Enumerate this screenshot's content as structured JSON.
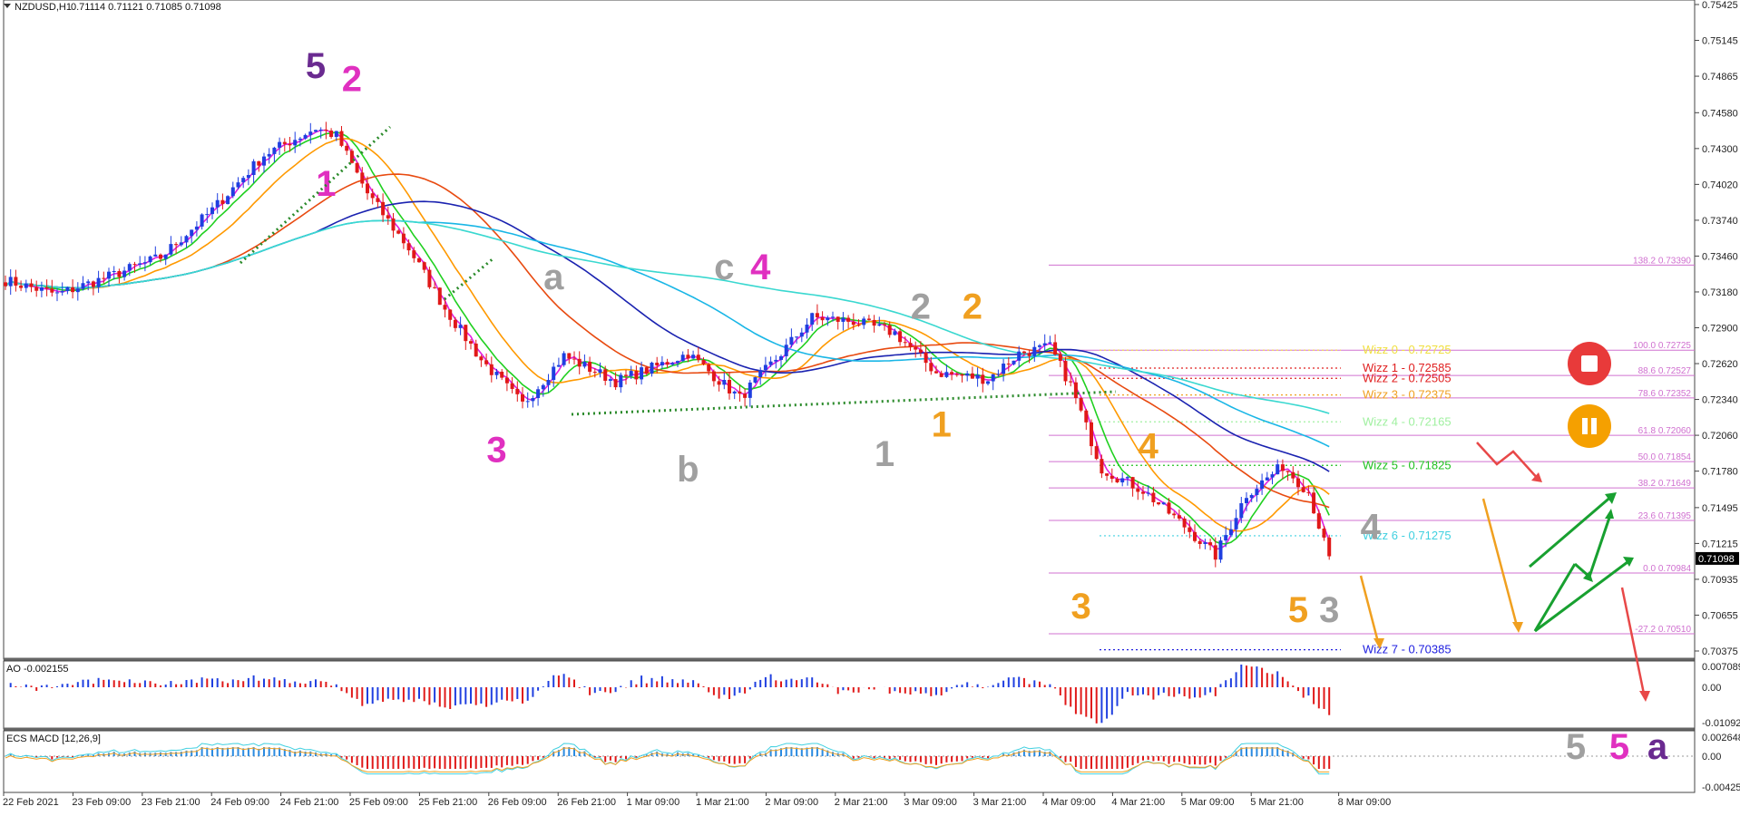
{
  "header": {
    "symbol": "NZDUSD,H1",
    "ohlc": "0.71114 0.71121 0.71085 0.71098"
  },
  "colors": {
    "bull": "#1f3fe0",
    "bear": "#e01818",
    "neutral": "#888888",
    "ema_fast": "#e020e0",
    "ema_mid": "#20d020",
    "ema_orange": "#ff9900",
    "ema_red": "#e84a10",
    "sma_blue": "#1a22b0",
    "sma_cyan": "#19b6e6",
    "sma_teal": "#3ad8d0",
    "fib": "#d070d0",
    "wave_purple": "#6a2a90",
    "wave_pink": "#e030c0",
    "wave_gray": "#a0a0a0",
    "wave_orange": "#f0a020",
    "arrow_green": "#18a030",
    "arrow_orange": "#f0a020",
    "arrow_red": "#e84848",
    "stop_button": "#e83a3a",
    "pause_button": "#f5a000"
  },
  "chart_data": {
    "type": "candlestick",
    "price_axis_ticks": [
      "0.75425",
      "0.75145",
      "0.74865",
      "0.74580",
      "0.74300",
      "0.74020",
      "0.73740",
      "0.73460",
      "0.73180",
      "0.72900",
      "0.72620",
      "0.72340",
      "0.72060",
      "0.71780",
      "0.71495",
      "0.71215",
      "0.70935",
      "0.70655",
      "0.70375"
    ],
    "current_price_label": "0.71098",
    "ylim": [
      0.70375,
      0.75425
    ],
    "time_labels": [
      "22 Feb 2021",
      "23 Feb 09:00",
      "23 Feb 21:00",
      "24 Feb 09:00",
      "24 Feb 21:00",
      "25 Feb 09:00",
      "25 Feb 21:00",
      "26 Feb 09:00",
      "26 Feb 21:00",
      "1 Mar 09:00",
      "1 Mar 21:00",
      "2 Mar 09:00",
      "2 Mar 21:00",
      "3 Mar 09:00",
      "3 Mar 21:00",
      "4 Mar 09:00",
      "4 Mar 21:00",
      "5 Mar 09:00",
      "5 Mar 21:00",
      "8 Mar 09:00"
    ],
    "close_anchors": [
      [
        0,
        0.7327
      ],
      [
        10,
        0.7316
      ],
      [
        20,
        0.733
      ],
      [
        30,
        0.7345
      ],
      [
        40,
        0.7382
      ],
      [
        50,
        0.7425
      ],
      [
        60,
        0.7446
      ],
      [
        64,
        0.744
      ],
      [
        70,
        0.7395
      ],
      [
        78,
        0.7352
      ],
      [
        85,
        0.7305
      ],
      [
        92,
        0.7265
      ],
      [
        100,
        0.723
      ],
      [
        108,
        0.7268
      ],
      [
        118,
        0.7248
      ],
      [
        126,
        0.726
      ],
      [
        132,
        0.727
      ],
      [
        142,
        0.7235
      ],
      [
        150,
        0.727
      ],
      [
        156,
        0.7298
      ],
      [
        164,
        0.7295
      ],
      [
        172,
        0.7286
      ],
      [
        180,
        0.7255
      ],
      [
        190,
        0.725
      ],
      [
        196,
        0.727
      ],
      [
        202,
        0.7275
      ],
      [
        206,
        0.7245
      ],
      [
        212,
        0.718
      ],
      [
        220,
        0.7163
      ],
      [
        228,
        0.7135
      ],
      [
        234,
        0.7112
      ],
      [
        240,
        0.716
      ],
      [
        247,
        0.7182
      ],
      [
        252,
        0.7162
      ],
      [
        256,
        0.7109
      ]
    ],
    "moving_averages": [
      {
        "name": "ema_fast",
        "color_key": "ema_fast",
        "lag": 2
      },
      {
        "name": "ema_mid",
        "color_key": "ema_mid",
        "lag": 6
      },
      {
        "name": "ema_orange",
        "color_key": "ema_orange",
        "lag": 14
      },
      {
        "name": "ema_red",
        "color_key": "ema_red",
        "lag": 40
      },
      {
        "name": "sma_blue",
        "color_key": "sma_blue",
        "lag": 60
      },
      {
        "name": "sma_cyan",
        "color_key": "sma_cyan",
        "lag": 80
      },
      {
        "name": "sma_teal",
        "color_key": "sma_teal",
        "lag": 120
      }
    ],
    "fib_levels": [
      {
        "label": "138.2 0.73390",
        "value": 0.7339
      },
      {
        "label": "100.0 0.72725",
        "value": 0.72725
      },
      {
        "label": "88.6 0.72527",
        "value": 0.72527
      },
      {
        "label": "78.6 0.72352",
        "value": 0.72352
      },
      {
        "label": "61.8 0.72060",
        "value": 0.7206
      },
      {
        "label": "50.0 0.71854",
        "value": 0.71854
      },
      {
        "label": "38.2 0.71649",
        "value": 0.71649
      },
      {
        "label": "23.6 0.71395",
        "value": 0.71395
      },
      {
        "label": "0.0 0.70984",
        "value": 0.70984
      },
      {
        "label": "-27.2 0.70510",
        "value": 0.7051
      }
    ],
    "wizz_levels": [
      {
        "label": "Wizz 0 - 0.72725",
        "value": 0.72725,
        "color": "#f0e040"
      },
      {
        "label": "Wizz 1 - 0.72585",
        "value": 0.72585,
        "color": "#e02020"
      },
      {
        "label": "Wizz 2 - 0.72505",
        "value": 0.72505,
        "color": "#e02020"
      },
      {
        "label": "Wizz 3 - 0.72375",
        "value": 0.72375,
        "color": "#f0a020"
      },
      {
        "label": "Wizz 4 - 0.72165",
        "value": 0.72165,
        "color": "#a0f0a0"
      },
      {
        "label": "Wizz 5 - 0.71825",
        "value": 0.71825,
        "color": "#20c020"
      },
      {
        "label": "Wizz 6 - 0.71275",
        "value": 0.71275,
        "color": "#40d0e0"
      },
      {
        "label": "Wizz 7 - 0.70385",
        "value": 0.70385,
        "color": "#2020e0"
      }
    ],
    "wave_labels": [
      {
        "text": "5",
        "color_key": "wave_purple",
        "bar": 60,
        "price": 0.7485
      },
      {
        "text": "2",
        "color_key": "wave_pink",
        "bar": 67,
        "price": 0.7475
      },
      {
        "text": "1",
        "color_key": "wave_pink",
        "bar": 62,
        "price": 0.7393
      },
      {
        "text": "3",
        "color_key": "wave_pink",
        "bar": 95,
        "price": 0.7185
      },
      {
        "text": "a",
        "color_key": "wave_gray",
        "bar": 106,
        "price": 0.732
      },
      {
        "text": "c",
        "color_key": "wave_gray",
        "bar": 139,
        "price": 0.7328
      },
      {
        "text": "4",
        "color_key": "wave_pink",
        "bar": 146,
        "price": 0.7328
      },
      {
        "text": "b",
        "color_key": "wave_gray",
        "bar": 132,
        "price": 0.717
      },
      {
        "text": "2",
        "color_key": "wave_gray",
        "bar": 177,
        "price": 0.7297
      },
      {
        "text": "2",
        "color_key": "wave_orange",
        "bar": 187,
        "price": 0.7297
      },
      {
        "text": "1",
        "color_key": "wave_gray",
        "bar": 170,
        "price": 0.7182
      },
      {
        "text": "1",
        "color_key": "wave_orange",
        "bar": 181,
        "price": 0.7205
      },
      {
        "text": "4",
        "color_key": "wave_orange",
        "bar": 221,
        "price": 0.7188
      },
      {
        "text": "3",
        "color_key": "wave_orange",
        "bar": 208,
        "price": 0.7063
      },
      {
        "text": "4",
        "color_key": "wave_gray",
        "bar": 264,
        "price": 0.7125
      },
      {
        "text": "5",
        "color_key": "wave_orange",
        "bar": 250,
        "price": 0.706
      },
      {
        "text": "3",
        "color_key": "wave_gray",
        "bar": 256,
        "price": 0.706
      }
    ],
    "ao": {
      "label": "AO -0.002155",
      "ticks": [
        "0.007089",
        "0.00",
        "-0.010921"
      ]
    },
    "macd": {
      "label": "ECS MACD [12,26,9]",
      "ticks": [
        "0.0026481",
        "0.00",
        "-0.0042512"
      ]
    },
    "bottom_wave_labels": [
      {
        "text": "5",
        "color_key": "wave_gray"
      },
      {
        "text": "5",
        "color_key": "wave_pink"
      },
      {
        "text": "a",
        "color_key": "wave_purple"
      }
    ]
  }
}
